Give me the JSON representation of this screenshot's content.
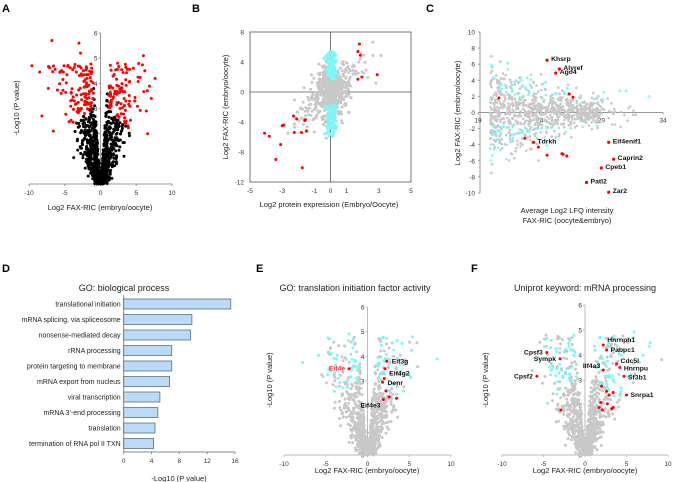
{
  "colors": {
    "significant": "#ff0000",
    "nonsignificant_A": "#000000",
    "background_points": "#c8c8c8",
    "cyan_points": "#7ff5f5",
    "bar_fill": "#bcd9f7",
    "bar_stroke": "#5b6f8a",
    "axis": "#999999"
  },
  "chart_data": [
    {
      "panel": "A",
      "type": "scatter",
      "title": "",
      "xlabel": "Log2 FAX-RIC (embryo/oocyte)",
      "ylabel": "-Log10 (P value)",
      "xlim": [
        -10,
        10
      ],
      "ylim": [
        0,
        6
      ],
      "xticks": [
        "-10",
        "-5",
        "0",
        "5",
        "10"
      ],
      "yticks": [
        "0",
        "1",
        "2",
        "3",
        "4",
        "5",
        "6"
      ],
      "series": [
        {
          "name": "significant",
          "color": "#ff0000",
          "description": "red points, |log2FC|>~1 and -log10P>~2",
          "highlight_points": [
            [
              -9.6,
              4.7
            ],
            [
              -8.5,
              4.45
            ],
            [
              -6.8,
              5.7
            ],
            [
              -7.3,
              3.8
            ],
            [
              -8.2,
              2.7
            ],
            [
              -6.6,
              2.1
            ],
            [
              -3,
              5.6
            ],
            [
              -2.8,
              5.2
            ],
            [
              -5.1,
              4.7
            ],
            [
              -2.4,
              4.5
            ],
            [
              -5.5,
              3.6
            ],
            [
              6,
              5.1
            ],
            [
              6.2,
              4.5
            ],
            [
              7.1,
              3.4
            ],
            [
              6.6,
              2.0
            ],
            [
              6.4,
              2.9
            ],
            [
              2.4,
              4.8
            ],
            [
              4.6,
              4.6
            ]
          ]
        },
        {
          "name": "not significant",
          "color": "#000000",
          "description": "black V-shaped cloud near origin"
        }
      ]
    },
    {
      "panel": "B",
      "type": "scatter",
      "xlabel": "Log2 protein expression (Embryo/Oocyte)",
      "ylabel": "Log2 FAX-RIC (embryo/oocyte)",
      "xlim": [
        -5,
        5
      ],
      "ylim": [
        -12,
        8
      ],
      "xticks": [
        "-5",
        "-3",
        "-1",
        "0",
        "1",
        "3",
        "5"
      ],
      "yticks": [
        "-12",
        "-8",
        "-4",
        "0",
        "4",
        "8"
      ],
      "series": [
        {
          "name": "red",
          "color": "#ff0000",
          "points": [
            [
              1.8,
              6.4
            ],
            [
              1.7,
              5.4
            ],
            [
              1.85,
              4.9
            ],
            [
              1.7,
              1.7
            ],
            [
              1.95,
              2.0
            ],
            [
              2.9,
              2.3
            ],
            [
              -4.1,
              -5.5
            ],
            [
              -3.8,
              -5.9
            ],
            [
              -3.4,
              -9.0
            ],
            [
              -3.1,
              -7.0
            ],
            [
              -2.9,
              -4.4
            ],
            [
              -2.3,
              -3.2
            ],
            [
              -2.1,
              -3.6
            ],
            [
              -1.6,
              -3.8
            ],
            [
              -1.55,
              -3.7
            ],
            [
              -2.25,
              -5.4
            ],
            [
              -1.8,
              -5.4
            ],
            [
              -1.5,
              -5.2
            ],
            [
              -1.75,
              -10.1
            ],
            [
              -3.0,
              -4.5
            ]
          ]
        },
        {
          "name": "cyan",
          "color": "#7ff5f5",
          "description": "vertical band at x≈0, y from ~-6 to 6 excluding |y|<2"
        },
        {
          "name": "gray",
          "color": "#c8c8c8",
          "description": "background cloud"
        }
      ]
    },
    {
      "panel": "C",
      "type": "scatter",
      "xlabel": "Average Log2 LFQ intensity FAX-RIC (oocyte&embryo)",
      "ylabel": "Log2 FAX-RIC (embryo/oocyte)",
      "xlim": [
        19,
        34
      ],
      "ylim": [
        -10,
        10
      ],
      "xticks": [
        "19",
        "24",
        "29",
        "34"
      ],
      "yticks": [
        "-10",
        "-8",
        "-6",
        "-4",
        "-2",
        "0",
        "2",
        "4",
        "6",
        "8",
        "10"
      ],
      "labeled_points": [
        {
          "label": "Khsrp",
          "x": 24.6,
          "y": 6.5
        },
        {
          "label": "Alyref",
          "x": 25.6,
          "y": 5.4
        },
        {
          "label": "Ago4",
          "x": 25.3,
          "y": 4.9
        },
        {
          "label": "Tdrkh",
          "x": 23.5,
          "y": -3.7
        },
        {
          "label": "Eif4enif1",
          "x": 29.6,
          "y": -3.7
        },
        {
          "label": "Caprin2",
          "x": 30.0,
          "y": -5.8
        },
        {
          "label": "Cpeb1",
          "x": 29.0,
          "y": -6.9
        },
        {
          "label": "Patl2",
          "x": 27.8,
          "y": -8.7
        },
        {
          "label": "Zar2",
          "x": 29.6,
          "y": -9.9
        }
      ],
      "extra_red_points": [
        [
          20.7,
          1.8
        ],
        [
          26.4,
          2.3
        ],
        [
          26.7,
          1.9
        ],
        [
          22.8,
          -3.2
        ],
        [
          24.6,
          -5.3
        ],
        [
          25.8,
          -5.1
        ],
        [
          25.9,
          -5.2
        ],
        [
          26.2,
          -5.4
        ],
        [
          23.9,
          -4.3
        ]
      ]
    },
    {
      "panel": "D",
      "type": "bar",
      "orientation": "horizontal",
      "title": "GO: biological process",
      "xlabel": "-Log10 (P value)",
      "xlim": [
        0,
        16
      ],
      "xticks": [
        "0",
        "4",
        "8",
        "12",
        "16"
      ],
      "categories": [
        "translational initiation",
        "mRNA splicing, via spliceosome",
        "nonsense-mediated decay",
        "rRNA processing",
        "protein targeting to membrane",
        "mRNA export from nucleus",
        "viral transcription",
        "mRNA 3'-end processing",
        "translation",
        "termination of RNA pol II TXN"
      ],
      "values": [
        15.4,
        9.8,
        9.6,
        6.9,
        6.9,
        6.6,
        5.2,
        4.9,
        4.5,
        4.3
      ]
    },
    {
      "panel": "E",
      "type": "scatter",
      "title": "GO: translation initiation factor activity",
      "xlabel": "Log2 FAX-RIC (embryo/oocyte)",
      "ylabel": "-Log10 (P value)",
      "xlim": [
        -10,
        10
      ],
      "ylim": [
        0,
        6
      ],
      "xticks": [
        "-10",
        "-5",
        "0",
        "5",
        "10"
      ],
      "yticks": [
        "0",
        "1",
        "2",
        "3",
        "4",
        "5",
        "6"
      ],
      "labeled_points": [
        {
          "label": "Eif3g",
          "x": 2.3,
          "y": 3.8,
          "color": "#111"
        },
        {
          "label": "Eif4e",
          "x": -2.2,
          "y": 3.5,
          "color": "#ff3333"
        },
        {
          "label": "Eif4g2",
          "x": 2.0,
          "y": 3.1,
          "color": "#111"
        },
        {
          "label": "Denr",
          "x": 1.8,
          "y": 2.95,
          "color": "#111"
        },
        {
          "label": "Eif4e3",
          "x": 1.9,
          "y": 2.25,
          "color": "#111"
        }
      ],
      "extra_red_points": [
        [
          2.1,
          3.5
        ],
        [
          2.2,
          2.6
        ],
        [
          2.6,
          2.35
        ],
        [
          3.5,
          2.3
        ]
      ]
    },
    {
      "panel": "F",
      "type": "scatter",
      "title": "Uniprot keyword: mRNA processing",
      "xlabel": "Log2 FAX-RIC (embryo/oocyte)",
      "ylabel": "-Log10 (P value)",
      "xlim": [
        -10,
        10
      ],
      "ylim": [
        0,
        6
      ],
      "xticks": [
        "-10",
        "-5",
        "0",
        "5",
        "10"
      ],
      "yticks": [
        "0",
        "1",
        "2",
        "3",
        "4",
        "5",
        "6"
      ],
      "labeled_points": [
        {
          "label": "Hnrnph1",
          "x": 2.2,
          "y": 4.4
        },
        {
          "label": "Pabpc1",
          "x": 2.6,
          "y": 4.2
        },
        {
          "label": "Cpsf3",
          "x": -4.6,
          "y": 4.1
        },
        {
          "label": "Sympk",
          "x": -3.0,
          "y": 3.85
        },
        {
          "label": "Cdc5l",
          "x": 3.8,
          "y": 3.65
        },
        {
          "label": "Hnrnpu",
          "x": 4.2,
          "y": 3.5
        },
        {
          "label": "Ilf4a3",
          "x": 2.2,
          "y": 3.4
        },
        {
          "label": "Cpsf2",
          "x": -5.8,
          "y": 3.15
        },
        {
          "label": "Sf3b1",
          "x": 4.7,
          "y": 3.15
        },
        {
          "label": "Snrpa1",
          "x": 5.0,
          "y": 2.4
        }
      ],
      "extra_red_points": [
        [
          2.0,
          2.75
        ],
        [
          2.6,
          2.55
        ],
        [
          2.9,
          2.4
        ],
        [
          3.4,
          2.5
        ],
        [
          1.9,
          2.1
        ],
        [
          2.7,
          2.05
        ],
        [
          1.7,
          1.9
        ],
        [
          2.1,
          1.8
        ],
        [
          3.2,
          1.85
        ],
        [
          3.4,
          1.9
        ],
        [
          -2.9,
          1.8
        ]
      ]
    }
  ],
  "panels": {
    "A": {
      "letter": "A"
    },
    "B": {
      "letter": "B"
    },
    "C": {
      "letter": "C"
    },
    "D": {
      "letter": "D"
    },
    "E": {
      "letter": "E"
    },
    "F": {
      "letter": "F"
    }
  }
}
